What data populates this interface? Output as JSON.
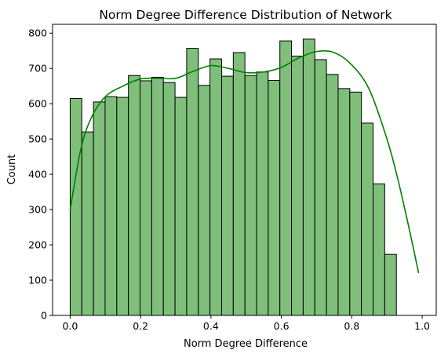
{
  "chart_data": {
    "type": "bar",
    "title": "Norm Degree Difference Distribution of Network",
    "xlabel": "Norm Degree Difference",
    "ylabel": "Count",
    "xlim": [
      -0.05,
      1.04
    ],
    "ylim": [
      0,
      825
    ],
    "xticks": [
      0.0,
      0.2,
      0.4,
      0.6,
      0.8,
      1.0
    ],
    "xtick_labels": [
      "0.0",
      "0.2",
      "0.4",
      "0.6",
      "0.8",
      "1.0"
    ],
    "yticks": [
      0,
      100,
      200,
      300,
      400,
      500,
      600,
      700,
      800
    ],
    "ytick_labels": [
      "0",
      "100",
      "200",
      "300",
      "400",
      "500",
      "600",
      "700",
      "800"
    ],
    "bin_start": 0.0,
    "bin_width": 0.0331,
    "values": [
      615,
      520,
      605,
      620,
      618,
      680,
      665,
      675,
      660,
      618,
      757,
      652,
      727,
      678,
      745,
      680,
      690,
      666,
      778,
      735,
      783,
      725,
      683,
      643,
      633,
      545,
      373,
      173
    ],
    "kde": {
      "x": [
        0.0,
        0.03,
        0.06,
        0.1,
        0.15,
        0.2,
        0.25,
        0.3,
        0.35,
        0.4,
        0.45,
        0.5,
        0.55,
        0.6,
        0.65,
        0.7,
        0.75,
        0.8,
        0.85,
        0.9,
        0.93,
        0.96,
        0.99
      ],
      "y": [
        300,
        470,
        560,
        620,
        650,
        670,
        672,
        672,
        692,
        708,
        700,
        688,
        690,
        703,
        730,
        748,
        745,
        710,
        640,
        500,
        390,
        260,
        120
      ]
    },
    "bar_color": "#7fbf7b",
    "line_color": "#008000",
    "legend": "none",
    "grid": false
  }
}
